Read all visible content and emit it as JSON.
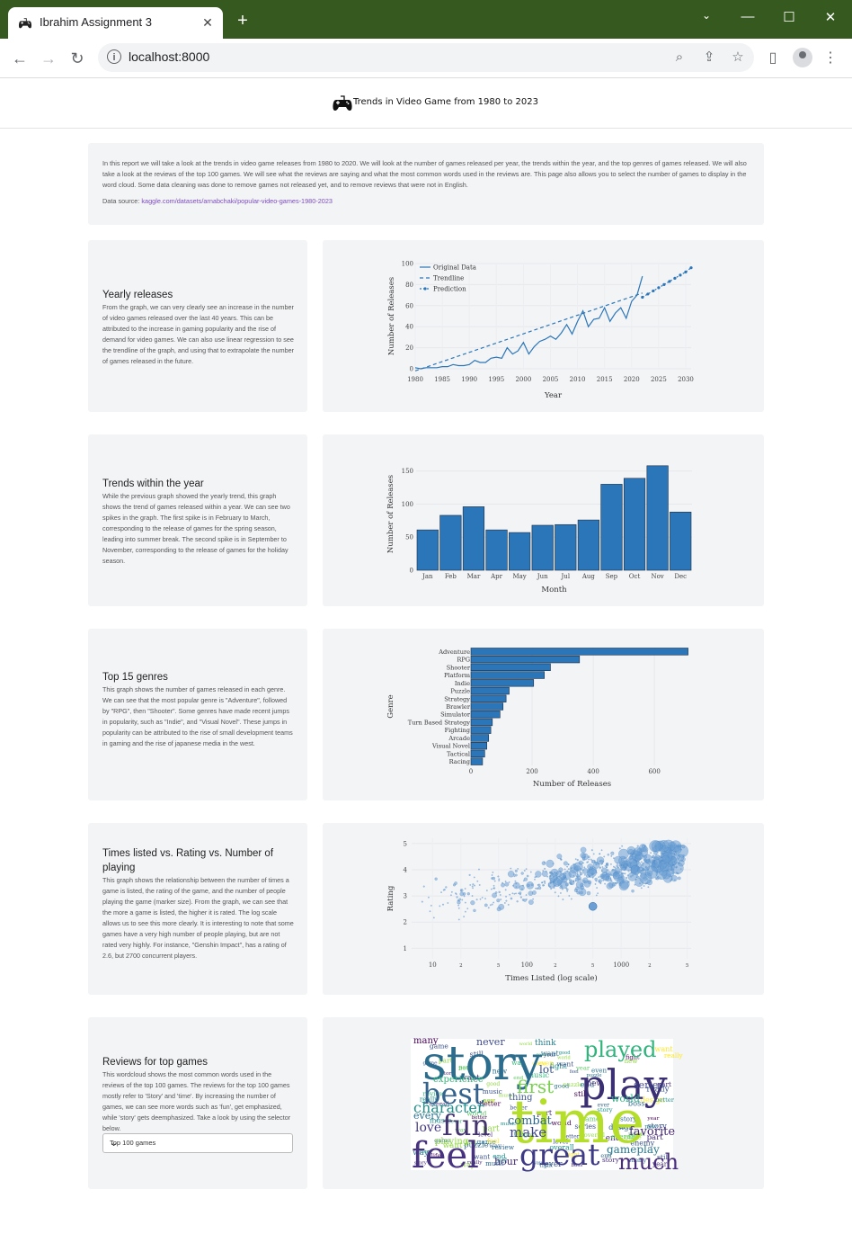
{
  "browser": {
    "tab_title": "Ibrahim Assignment 3",
    "url": "localhost:8000",
    "accent_color": "#35591f"
  },
  "header": {
    "title": "Trends in Video Game from 1980 to 2023",
    "logo_icon": "gamepad-icon"
  },
  "intro": {
    "text": "In this report we will take a look at the trends in video game releases from 1980 to 2020. We will look at the number of games released per year, the trends within the year, and the top genres of games released. We will also take a look at the reviews of the top 100 games. We will see what the reviews are saying and what the most common words used in the reviews are. This page also allows you to select the number of games to display in the word cloud. Some data cleaning was done to remove games not released yet, and to remove reviews that were not in English.",
    "source_label": "Data source: ",
    "source_link": "kaggle.com/datasets/arnabchaki/popular-video-games-1980-2023"
  },
  "sections": [
    {
      "title": "Yearly releases",
      "body": "From the graph, we can very clearly see an increase in the number of video games released over the last 40 years. This can be attributed to the increase in gaming popularity and the rise of demand for video games. We can also use linear regression to see the trendline of the graph, and using that to extrapolate the number of games released in the future."
    },
    {
      "title": "Trends within the year",
      "body": "While the previous graph showed the yearly trend, this graph shows the trend of games released within a year. We can see two spikes in the graph. The first spike is in February to March, corresponding to the release of games for the spring season, leading into summer break. The second spike is in September to November, corresponding to the release of games for the holiday season."
    },
    {
      "title": "Top 15 genres",
      "body": "This graph shows the number of games released in each genre. We can see that the most popular genre is \"Adventure\", followed by \"RPG\", then \"Shooter\". Some genres have made recent jumps in popularity, such as \"Indie\", and \"Visual Novel\". These jumps in popularity can be attributed to the rise of small development teams in gaming and the rise of japanese media in the west."
    },
    {
      "title": "Times listed vs. Rating vs. Number of playing",
      "body": "This graph shows the relationship between the number of times a game is listed, the rating of the game, and the number of people playing the game (marker size). From the graph, we can see that the more a game is listed, the higher it is rated. The log scale allows us to see this more clearly. It is interesting to note that some games have a very high number of people playing, but are not rated very highly. For instance, \"Genshin Impact\", has a rating of 2.6, but 2700 concurrent players."
    },
    {
      "title": "Reviews for top games",
      "body": "This wordcloud shows the most common words used in the reviews of the top 100 games. The reviews for the top 100 games mostly refer to 'Story' and 'time'. By increasing the number of games, we can see more words such as 'fun', get emphasized, while 'story' gets deemphasized. Take a look by using the selector below.",
      "select_value": "Top 100 games"
    }
  ],
  "chart_data": [
    {
      "type": "line",
      "xlabel": "Year",
      "ylabel": "Number of Releases",
      "xlim": [
        1980,
        2031
      ],
      "ylim": [
        0,
        100
      ],
      "xticks": [
        "1980",
        "1985",
        "1990",
        "1995",
        "2000",
        "2005",
        "2010",
        "2015",
        "2020",
        "2025",
        "2030"
      ],
      "yticks": [
        "0",
        "20",
        "40",
        "60",
        "80",
        "100"
      ],
      "legend_position": "top-left",
      "series": [
        {
          "name": "Original Data",
          "x": [
            1980,
            1981,
            1982,
            1983,
            1984,
            1985,
            1986,
            1987,
            1988,
            1989,
            1990,
            1991,
            1992,
            1993,
            1994,
            1995,
            1996,
            1997,
            1998,
            1999,
            2000,
            2001,
            2002,
            2003,
            2004,
            2005,
            2006,
            2007,
            2008,
            2009,
            2010,
            2011,
            2012,
            2013,
            2014,
            2015,
            2016,
            2017,
            2018,
            2019,
            2020,
            2021,
            2022
          ],
          "y": [
            1,
            0,
            1,
            1,
            1,
            2,
            2,
            4,
            3,
            3,
            4,
            8,
            6,
            6,
            10,
            11,
            10,
            20,
            14,
            17,
            25,
            14,
            21,
            26,
            28,
            31,
            28,
            34,
            42,
            33,
            45,
            55,
            40,
            47,
            48,
            58,
            45,
            53,
            58,
            48,
            64,
            70,
            88
          ]
        },
        {
          "name": "Trendline",
          "x": [
            1980,
            2022
          ],
          "y": [
            -2,
            72
          ]
        },
        {
          "name": "Prediction",
          "x": [
            2022,
            2023,
            2024,
            2025,
            2026,
            2027,
            2028,
            2029,
            2030,
            2031
          ],
          "y": [
            68,
            71,
            74,
            77,
            80,
            83,
            86,
            89,
            92,
            96
          ]
        }
      ]
    },
    {
      "type": "bar",
      "xlabel": "Month",
      "ylabel": "Number of Releases",
      "ylim": [
        0,
        170
      ],
      "yticks": [
        "0",
        "50",
        "100",
        "150"
      ],
      "categories": [
        "Jan",
        "Feb",
        "Mar",
        "Apr",
        "May",
        "Jun",
        "Jul",
        "Aug",
        "Sep",
        "Oct",
        "Nov",
        "Dec"
      ],
      "values": [
        61,
        83,
        96,
        61,
        57,
        68,
        69,
        76,
        130,
        139,
        158,
        88
      ]
    },
    {
      "type": "bar",
      "orientation": "horizontal",
      "xlabel": "Number of Releases",
      "ylabel": "Genre",
      "xlim": [
        0,
        720
      ],
      "xticks": [
        "0",
        "200",
        "400",
        "600"
      ],
      "categories": [
        "Adventure",
        "RPG",
        "Shooter",
        "Platform",
        "Indie",
        "Puzzle",
        "Strategy",
        "Brawler",
        "Simulator",
        "Turn Based Strategy",
        "Fighting",
        "Arcade",
        "Visual Novel",
        "Tactical",
        "Racing"
      ],
      "values": [
        710,
        355,
        260,
        240,
        205,
        125,
        115,
        105,
        95,
        70,
        65,
        58,
        52,
        45,
        38
      ]
    },
    {
      "type": "scatter",
      "xlabel": "Times Listed (log scale)",
      "ylabel": "Rating",
      "x_scale": "log",
      "xlim": [
        6,
        5500
      ],
      "ylim": [
        0.6,
        5.2
      ],
      "xticks": [
        {
          "v": 10,
          "l": "10"
        },
        {
          "v": 20,
          "l": "2"
        },
        {
          "v": 50,
          "l": "5"
        },
        {
          "v": 100,
          "l": "100"
        },
        {
          "v": 200,
          "l": "2"
        },
        {
          "v": 500,
          "l": "5"
        },
        {
          "v": 1000,
          "l": "1000"
        },
        {
          "v": 2000,
          "l": "2"
        },
        {
          "v": 5000,
          "l": "5"
        }
      ],
      "yticks": [
        "1",
        "2",
        "3",
        "4",
        "5"
      ],
      "points_estimate": 700,
      "notable_point": {
        "label": "Genshin Impact",
        "rating": 2.6,
        "playing": 2700
      }
    },
    {
      "type": "wordcloud",
      "words": [
        {
          "t": "story",
          "s": 52,
          "c": "#2c6d8e",
          "x": 470,
          "y": 1200
        },
        {
          "t": "time",
          "s": 66,
          "c": "#b5de2b",
          "x": 568,
          "y": 1270
        },
        {
          "t": "play",
          "s": 46,
          "c": "#3b2f73",
          "x": 645,
          "y": 1222
        },
        {
          "t": "feel",
          "s": 40,
          "c": "#46327e",
          "x": 458,
          "y": 1298
        },
        {
          "t": "great",
          "s": 33,
          "c": "#3e3a85",
          "x": 578,
          "y": 1295
        },
        {
          "t": "best",
          "s": 32,
          "c": "#33638d",
          "x": 470,
          "y": 1227
        },
        {
          "t": "fun",
          "s": 32,
          "c": "#42336f",
          "x": 492,
          "y": 1262
        },
        {
          "t": "played",
          "s": 24,
          "c": "#2fb47c",
          "x": 650,
          "y": 1175
        },
        {
          "t": "much",
          "s": 24,
          "c": "#472d7b",
          "x": 688,
          "y": 1300
        },
        {
          "t": "first",
          "s": 20,
          "c": "#7ad151",
          "x": 575,
          "y": 1215
        },
        {
          "t": "character",
          "s": 16,
          "c": "#21918c",
          "x": 460,
          "y": 1237
        },
        {
          "t": "combat",
          "s": 13,
          "c": "#31688e",
          "x": 565,
          "y": 1250
        },
        {
          "t": "make",
          "s": 15,
          "c": "#3f4788",
          "x": 567,
          "y": 1264
        },
        {
          "t": "love",
          "s": 14,
          "c": "#443a83",
          "x": 462,
          "y": 1258
        },
        {
          "t": "favorite",
          "s": 13,
          "c": "#482677",
          "x": 700,
          "y": 1262
        },
        {
          "t": "gameplay",
          "s": 12,
          "c": "#2a788e",
          "x": 675,
          "y": 1282
        },
        {
          "t": "world",
          "s": 11,
          "c": "#29af7f",
          "x": 680,
          "y": 1225
        },
        {
          "t": "never",
          "s": 11,
          "c": "#3e4a89",
          "x": 530,
          "y": 1162
        },
        {
          "t": "experience",
          "s": 10,
          "c": "#35b779",
          "x": 482,
          "y": 1203
        },
        {
          "t": "every",
          "s": 11,
          "c": "#2d708e",
          "x": 460,
          "y": 1244
        },
        {
          "t": "hour",
          "s": 11,
          "c": "#472c7a",
          "x": 550,
          "y": 1295
        },
        {
          "t": "thing",
          "s": 10,
          "c": "#3a548c",
          "x": 566,
          "y": 1223
        },
        {
          "t": "lot",
          "s": 12,
          "c": "#3b518b",
          "x": 600,
          "y": 1193
        },
        {
          "t": "series",
          "s": 11,
          "c": "#404688",
          "x": 705,
          "y": 1210
        },
        {
          "t": "playing",
          "s": 10,
          "c": "#90d743",
          "x": 484,
          "y": 1272
        },
        {
          "t": "many",
          "s": 10,
          "c": "#440154",
          "x": 460,
          "y": 1160
        },
        {
          "t": "think",
          "s": 9,
          "c": "#277f8e",
          "x": 595,
          "y": 1162
        }
      ]
    }
  ]
}
